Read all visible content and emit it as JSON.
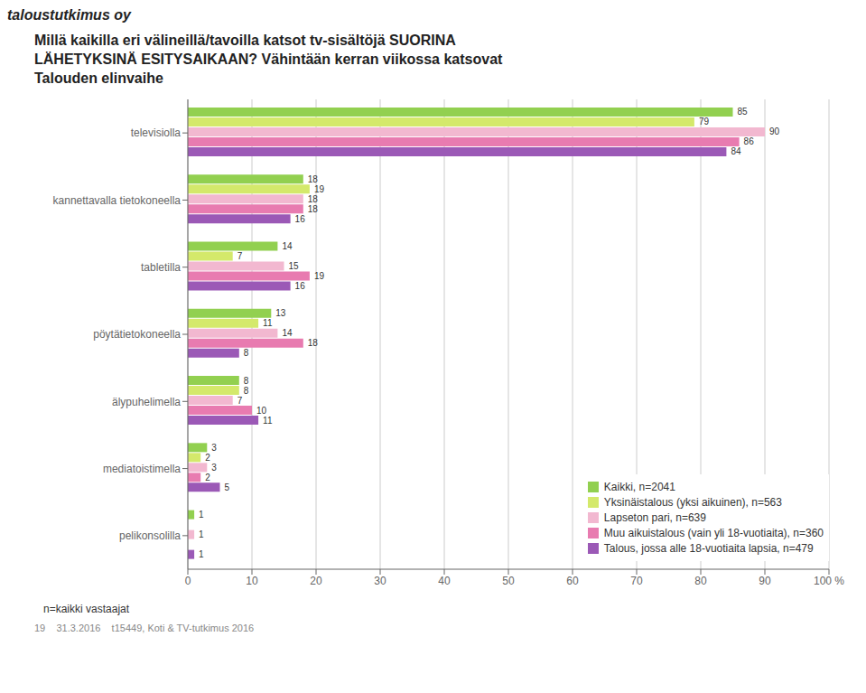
{
  "chart_data": {
    "type": "bar",
    "orientation": "horizontal",
    "title": "Millä kaikilla eri välineillä/tavoilla katsot tv-sisältöjä SUORINA\nLÄHETYKSINÄ ESITYSAIKAAN? Vähintään kerran viikossa katsovat",
    "subtitle": "Talouden elinvaihe",
    "annotations": [
      "taloustutkimus oy",
      "19    31.3.2016    t15449, Koti & TV-tutkimus 2016"
    ],
    "xlabel": "n=kaikki vastaajat",
    "categories": [
      "televisiolla",
      "kannettavalla tietokoneella",
      "tabletilla",
      "pöytätietokoneella",
      "älypuhelimella",
      "mediatoistimella",
      "pelikonsolilla"
    ],
    "series": [
      {
        "name": "Kaikki, n=2041",
        "color": "#92d050",
        "values": [
          85,
          18,
          14,
          13,
          8,
          3,
          1
        ]
      },
      {
        "name": "Yksinäistalous (yksi aikuinen), n=563",
        "color": "#d4e96b",
        "values": [
          79,
          19,
          7,
          11,
          8,
          2,
          0
        ]
      },
      {
        "name": "Lapseton pari, n=639",
        "color": "#f2b8d0",
        "values": [
          90,
          18,
          15,
          14,
          7,
          3,
          1
        ]
      },
      {
        "name": "Muu aikuistalous (vain yli 18-vuotiaita), n=360",
        "color": "#e87bb0",
        "values": [
          86,
          18,
          19,
          18,
          10,
          2,
          0
        ]
      },
      {
        "name": "Talous, jossa alle 18-vuotiaita lapsia, n=479",
        "color": "#9b59b6",
        "values": [
          84,
          16,
          16,
          8,
          11,
          5,
          1
        ]
      }
    ],
    "xlim": [
      0,
      100
    ],
    "xticks": [
      0,
      10,
      20,
      30,
      40,
      50,
      60,
      70,
      80,
      90,
      {
        "value": 100,
        "label": "100 %"
      }
    ],
    "grid": true,
    "legend": "lower right",
    "data_labels": true
  }
}
